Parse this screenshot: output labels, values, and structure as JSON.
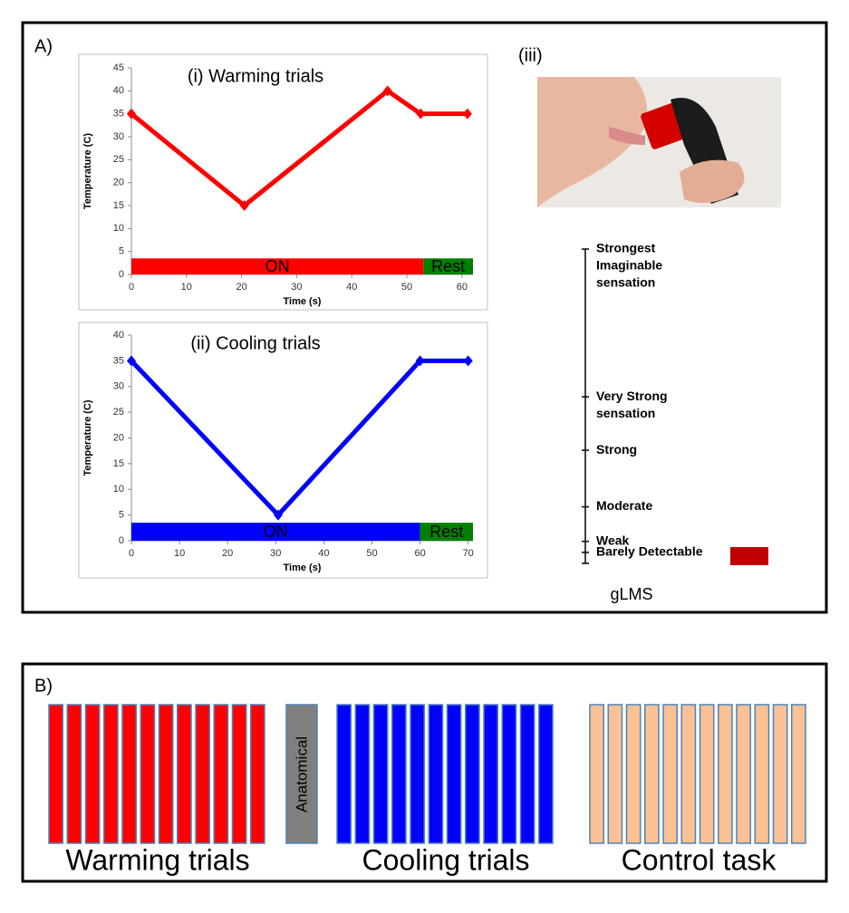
{
  "panel_a": {
    "label": "A)",
    "photo_label": "(iii)"
  },
  "chart_data": [
    {
      "type": "line",
      "title": "(i) Warming trials",
      "x_label": "Time (s)",
      "y_label": "Temperature (C)",
      "x": [
        0,
        20.5,
        46.5,
        52.5,
        61
      ],
      "series": [
        {
          "color": "#ff0000",
          "values": [
            35,
            15,
            40,
            35,
            35
          ]
        }
      ],
      "bands": [
        {
          "label": "ON",
          "start": 0,
          "end": 53,
          "y0": 0,
          "y1": 3.5,
          "color": "#ff0000"
        },
        {
          "label": "Rest",
          "start": 53,
          "end": 62,
          "y0": 0,
          "y1": 3.5,
          "color": "#008000"
        }
      ],
      "xlim": [
        0,
        62
      ],
      "xticks": [
        0,
        10,
        20,
        30,
        40,
        50,
        60
      ],
      "ylim": [
        0,
        45
      ],
      "yticks": [
        0,
        5,
        10,
        15,
        20,
        25,
        30,
        35,
        40,
        45
      ]
    },
    {
      "type": "line",
      "title": "(ii) Cooling trials",
      "x_label": "Time (s)",
      "y_label": "Temperature (C)",
      "x": [
        0,
        30.5,
        60,
        70
      ],
      "series": [
        {
          "color": "#0000ff",
          "values": [
            35,
            5,
            35,
            35
          ]
        }
      ],
      "bands": [
        {
          "label": "ON",
          "start": 0,
          "end": 60,
          "y0": 0,
          "y1": 3.5,
          "color": "#0000ff"
        },
        {
          "label": "Rest",
          "start": 60,
          "end": 71,
          "y0": 0,
          "y1": 3.5,
          "color": "#008000"
        }
      ],
      "xlim": [
        0,
        71
      ],
      "xticks": [
        0,
        10,
        20,
        30,
        40,
        50,
        60,
        70
      ],
      "ylim": [
        0,
        40
      ],
      "yticks": [
        0,
        5,
        10,
        15,
        20,
        25,
        30,
        35,
        40
      ]
    }
  ],
  "glms": {
    "label": "gLMS",
    "max": 100,
    "items": [
      {
        "lines": [
          "Strongest",
          "Imaginable",
          "sensation"
        ],
        "value": 100
      },
      {
        "lines": [
          "Very Strong",
          "sensation"
        ],
        "value": 53
      },
      {
        "lines": [
          "Strong"
        ],
        "value": 36
      },
      {
        "lines": [
          "Moderate"
        ],
        "value": 18
      },
      {
        "lines": [
          "Weak"
        ],
        "value": 7
      },
      {
        "lines": [
          "Barely Detectable"
        ],
        "value": 3.5
      }
    ]
  },
  "panel_b": {
    "label": "B)",
    "anatomical": "Anatomical",
    "groups": [
      {
        "label": "Warming trials",
        "count": 12,
        "color": "#ff0000"
      },
      {
        "label": "Cooling trials",
        "count": 12,
        "color": "#0000ff"
      },
      {
        "label": "Control task",
        "count": 12,
        "color": "#f9c194"
      }
    ]
  }
}
